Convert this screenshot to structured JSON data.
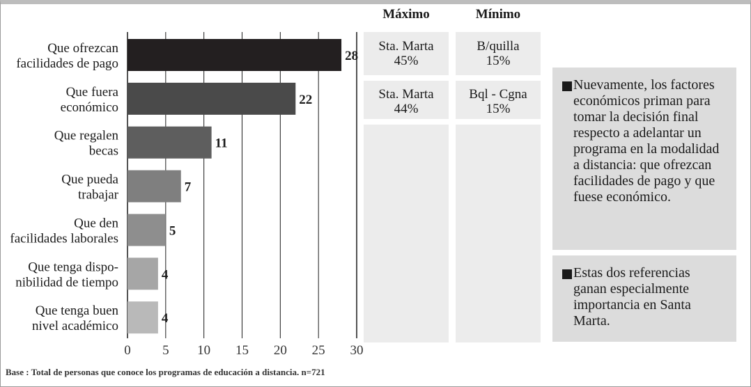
{
  "chart_data": {
    "type": "bar",
    "orientation": "horizontal",
    "categories": [
      [
        "Que ofrezcan",
        "facilidades de pago"
      ],
      [
        "Que fuera",
        "económico"
      ],
      [
        "Que regalen",
        "becas"
      ],
      [
        "Que pueda",
        "trabajar"
      ],
      [
        "Que den",
        "facilidades laborales"
      ],
      [
        "Que tenga dispo-",
        "nibilidad de tiempo"
      ],
      [
        "Que tenga buen",
        "nivel académico"
      ]
    ],
    "values": [
      28,
      22,
      11,
      7,
      5,
      4,
      4
    ],
    "bar_colors": [
      "#231f20",
      "#4a4a4a",
      "#5e5e5e",
      "#7f7f7f",
      "#8e8e8e",
      "#a6a6a6",
      "#b9b9b9"
    ],
    "xlim": [
      0,
      30
    ],
    "xticks": [
      0,
      5,
      10,
      15,
      20,
      25,
      30
    ],
    "grid": true
  },
  "table": {
    "headers": [
      "Máximo",
      "Mínimo"
    ],
    "rows": [
      [
        [
          "Sta. Marta",
          "45%"
        ],
        [
          "B/quilla",
          "15%"
        ]
      ],
      [
        [
          "Sta. Marta",
          "44%"
        ],
        [
          "Bql - Cgna",
          "15%"
        ]
      ]
    ]
  },
  "notes": [
    "Nuevamente, los factores económicos priman para tomar la decisión final respecto a adelantar un programa en la modalidad a distancia: que ofrezcan facilidades de pago y que fuese económico.",
    "Estas dos referencias ganan especialmente importancia en Santa Marta."
  ],
  "base_note": "Base : Total de personas que conoce los programas de educación a distancia. n=721"
}
